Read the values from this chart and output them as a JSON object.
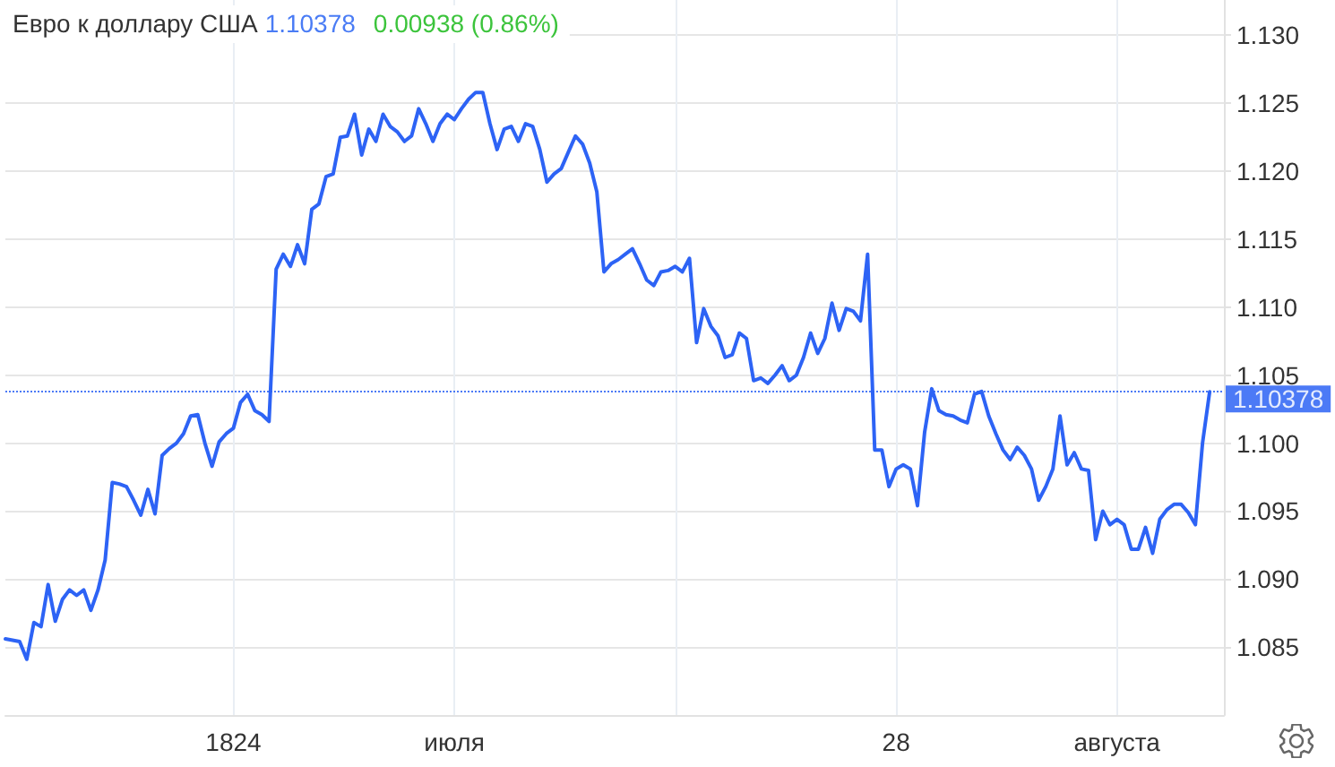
{
  "chart_data": {
    "type": "line",
    "title": "Евро к доллару США",
    "annotations": [
      "1.10378",
      "0.00938 (0.86%)"
    ],
    "categories": [
      null,
      null,
      null,
      null,
      null,
      null,
      null,
      null,
      null,
      null,
      null,
      null,
      null,
      null,
      null,
      null,
      null,
      null,
      null,
      null,
      null,
      null,
      null,
      null,
      null,
      null,
      null,
      null,
      null,
      null,
      null,
      null,
      "1824",
      null,
      null,
      null,
      null,
      null,
      null,
      null,
      null,
      null,
      null,
      null,
      null,
      null,
      null,
      null,
      null,
      null,
      null,
      null,
      null,
      null,
      null,
      null,
      null,
      null,
      null,
      null,
      null,
      null,
      null,
      "июля",
      null,
      null,
      null,
      null,
      null,
      null,
      null,
      null,
      null,
      null,
      null,
      null,
      null,
      null,
      null,
      null,
      null,
      null,
      null,
      null,
      null,
      null,
      null,
      null,
      null,
      null,
      null,
      null,
      null,
      null,
      null,
      null,
      null,
      null,
      null,
      null,
      null,
      null,
      null,
      null,
      null,
      null,
      null,
      null,
      null,
      null,
      null,
      null,
      null,
      null,
      null,
      null,
      null,
      null,
      null,
      null,
      null,
      null,
      null,
      null,
      null,
      "28",
      null,
      null,
      null,
      null,
      null,
      null,
      null,
      null,
      null,
      null,
      null,
      null,
      null,
      null,
      null,
      null,
      null,
      null,
      null,
      null,
      null,
      null,
      null,
      null,
      null,
      null,
      null,
      null,
      null,
      null,
      "августа",
      null,
      null,
      null,
      null,
      null,
      null,
      null,
      null,
      null,
      null,
      null,
      null,
      null,
      null,
      null
    ],
    "series": [
      {
        "color": "#2d63f5",
        "values": [
          1.0856,
          1.0855,
          1.0854,
          1.0841,
          1.0868,
          1.0865,
          1.0896,
          1.0869,
          1.0885,
          1.0892,
          1.0888,
          1.0892,
          1.0877,
          1.0892,
          1.0914,
          1.0971,
          1.097,
          1.0968,
          1.0958,
          1.0947,
          1.0966,
          1.0948,
          1.0991,
          1.0996,
          1.1,
          1.1007,
          1.102,
          1.1021,
          1.1,
          1.0983,
          1.1001,
          1.1007,
          1.1011,
          1.103,
          1.1036,
          1.1024,
          1.1021,
          1.1016,
          1.1128,
          1.1139,
          1.113,
          1.1146,
          1.1132,
          1.1172,
          1.1176,
          1.1196,
          1.1198,
          1.1225,
          1.1226,
          1.1242,
          1.1212,
          1.1231,
          1.1222,
          1.1242,
          1.1233,
          1.1229,
          1.1222,
          1.1226,
          1.1246,
          1.1235,
          1.1222,
          1.1235,
          1.1242,
          1.1238,
          1.1246,
          1.1253,
          1.1258,
          1.1258,
          1.1235,
          1.1216,
          1.1231,
          1.1233,
          1.1222,
          1.1235,
          1.1233,
          1.1216,
          1.1192,
          1.1198,
          1.1202,
          1.1214,
          1.1226,
          1.122,
          1.1206,
          1.1185,
          1.1126,
          1.1132,
          1.1135,
          1.1139,
          1.1143,
          1.1132,
          1.112,
          1.1116,
          1.1126,
          1.1127,
          1.113,
          1.1126,
          1.1136,
          1.1074,
          1.1099,
          1.1086,
          1.1079,
          1.1063,
          1.1065,
          1.1081,
          1.1077,
          1.1046,
          1.1048,
          1.1044,
          1.105,
          1.1057,
          1.1046,
          1.105,
          1.1063,
          1.1081,
          1.1066,
          1.1077,
          1.1103,
          1.1083,
          1.1099,
          1.1097,
          1.109,
          1.1139,
          1.0995,
          1.0995,
          1.0968,
          1.0981,
          1.0984,
          1.0981,
          1.0954,
          1.1008,
          1.104,
          1.1024,
          1.1021,
          1.102,
          1.1017,
          1.1015,
          1.1036,
          1.1038,
          1.102,
          1.1007,
          1.0995,
          1.0988,
          1.0997,
          1.0991,
          1.0981,
          1.0958,
          1.0968,
          1.0981,
          1.102,
          1.0984,
          1.0993,
          1.0981,
          1.098,
          1.0929,
          1.095,
          1.094,
          1.0944,
          1.094,
          1.0922,
          1.0922,
          1.0938,
          1.0919,
          1.0944,
          1.0951,
          1.0955,
          1.0955,
          1.0949,
          1.094,
          1.1,
          1.10378,
          null,
          null
        ]
      }
    ],
    "ylim": [
      1.08,
      1.1326
    ],
    "yticks": [
      1.085,
      {
        "value": 1.09,
        "label": "1.090"
      },
      1.095,
      {
        "value": 1.1,
        "label": "1.100"
      },
      1.105,
      {
        "value": 1.11,
        "label": "1.110"
      },
      1.115,
      {
        "value": 1.12,
        "label": "1.120"
      },
      1.125,
      {
        "value": 1.13,
        "label": "1.130"
      }
    ],
    "grid": true,
    "marker": "none",
    "line_style": "solid",
    "ref_lines": [
      {
        "axis": "y",
        "value": 1.10378,
        "label": "1.10378",
        "color": "#2d63f5",
        "line_style": "dotted"
      }
    ]
  }
}
